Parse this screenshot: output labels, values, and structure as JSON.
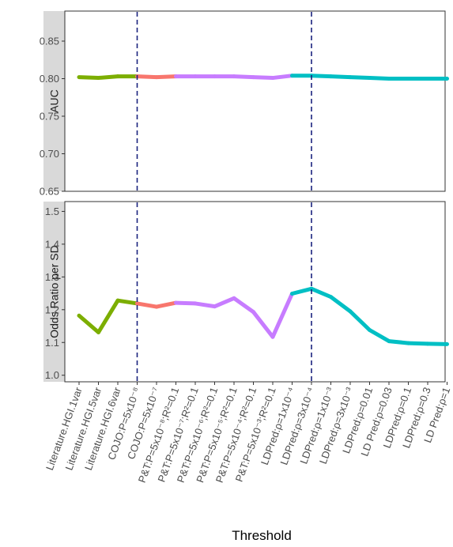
{
  "chart_data": {
    "type": "line",
    "xlabel": "Threshold",
    "categories": [
      "Literature.HGI.1var",
      "Literature.HGI.5var",
      "Literature.HGI.6var",
      "COJO:P=5x10⁻⁸",
      "COJO:P=5x10⁻⁷",
      "P&T:P=5x10⁻⁸;R²=0.1",
      "P&T:P=5x10⁻⁷;R²=0.1",
      "P&T:P=5x10⁻⁶;R²=0.1",
      "P&T:P=5x10⁻⁵;R²=0.1",
      "P&T:P=5x10⁻⁴;R²=0.1",
      "P&T:P=5x10⁻³;R²=0.1",
      "LDPred:ρ=1x10⁻⁴",
      "LDPred:ρ=3x10⁻⁴",
      "LDPred:ρ=1x10⁻³",
      "LDPred:ρ=3x10⁻³",
      "LDPred:ρ=0.01",
      "LD Pred:ρ=0.03",
      "LDPred:ρ=0.1",
      "LDPred:ρ=0.3",
      "LD Pred:ρ=1"
    ],
    "groups": [
      {
        "color": "#7CAE00",
        "start": 0,
        "end": 3
      },
      {
        "color": "#F8766D",
        "start": 3,
        "end": 5
      },
      {
        "color": "#C77CFF",
        "start": 5,
        "end": 11
      },
      {
        "color": "#00BFC4",
        "start": 11,
        "end": 19
      }
    ],
    "vlines": [
      3,
      12
    ],
    "vline_color": "#1a237e",
    "panels": [
      {
        "strip": "AUC",
        "ylim": [
          0.65,
          0.89
        ],
        "yticks": [
          "0.65",
          "0.70",
          "0.75",
          "0.80",
          "0.85"
        ],
        "values": [
          0.802,
          0.801,
          0.803,
          0.803,
          0.802,
          0.803,
          0.803,
          0.803,
          0.803,
          0.802,
          0.801,
          0.804,
          0.804,
          0.803,
          0.802,
          0.801,
          0.8,
          0.8,
          0.8,
          0.8
        ]
      },
      {
        "strip": "Odds Ratio per SD",
        "ylim": [
          0.98,
          1.53
        ],
        "yticks": [
          "1.0",
          "1.1",
          "1.2",
          "1.3",
          "1.4",
          "1.5"
        ],
        "values": [
          1.182,
          1.131,
          1.228,
          1.219,
          1.209,
          1.221,
          1.219,
          1.21,
          1.235,
          1.193,
          1.117,
          1.249,
          1.264,
          1.239,
          1.195,
          1.138,
          1.104,
          1.098,
          1.096,
          1.095
        ]
      }
    ]
  }
}
